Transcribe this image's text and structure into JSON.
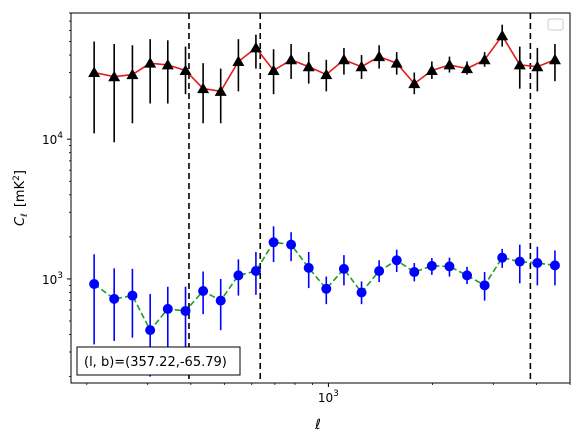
{
  "chart_data": {
    "type": "line",
    "xlabel": "ℓ",
    "ylabel_main": "C",
    "ylabel_sub": "ℓ",
    "ylabel_unit": "[mK",
    "ylabel_unit_sup": "2",
    "ylabel_unit_end": "]",
    "x_scale": "log",
    "y_scale": "log",
    "xlim": [
      180,
      5000
    ],
    "ylim": [
      180,
      80000
    ],
    "x_tick_labels": [
      {
        "value": 1000,
        "base": "10",
        "exp": "3"
      }
    ],
    "y_tick_labels": [
      {
        "value": 1000,
        "base": "10",
        "exp": "3"
      },
      {
        "value": 10000,
        "base": "10",
        "exp": "4"
      }
    ],
    "vlines": [
      395,
      635,
      3840
    ],
    "annotation": "(l, b)=(357.22,-65.79)",
    "legend": "top-right (empty)",
    "series": [
      {
        "color": "#e31a1c",
        "marker_color": "#000000",
        "marker": "triangle",
        "linestyle": "solid",
        "x": [
          210,
          240,
          271,
          305,
          343,
          386,
          434,
          488,
          549,
          617,
          694,
          780,
          877,
          986,
          1109,
          1247,
          1402,
          1576,
          1772,
          1992,
          2240,
          2518,
          2831,
          3183,
          3578,
          4023,
          4523
        ],
        "y": [
          30000,
          28000,
          29000,
          35000,
          34000,
          31000,
          23000,
          22000,
          36000,
          45000,
          31000,
          37000,
          33000,
          29000,
          37000,
          33000,
          39000,
          35000,
          25000,
          31000,
          34000,
          32000,
          37000,
          55000,
          34000,
          33000,
          37000
        ],
        "yerr_lo": [
          11000,
          9500,
          13000,
          18000,
          18000,
          21000,
          13000,
          13000,
          22000,
          32000,
          21000,
          27000,
          25000,
          22000,
          29000,
          27000,
          32000,
          29000,
          21000,
          27000,
          30000,
          29000,
          33000,
          46000,
          23000,
          22000,
          26000
        ],
        "yerr_hi": [
          50000,
          48000,
          47000,
          52000,
          51000,
          46000,
          35000,
          32000,
          52000,
          56000,
          44000,
          48000,
          42000,
          37000,
          45000,
          40000,
          47000,
          42000,
          30000,
          36000,
          39000,
          36000,
          42000,
          66000,
          46000,
          45000,
          48000
        ]
      },
      {
        "color": "#1f9e1f",
        "marker_color": "#0000ff",
        "marker": "circle",
        "linestyle": "dashed",
        "x": [
          210,
          240,
          271,
          305,
          343,
          386,
          434,
          488,
          549,
          617,
          694,
          780,
          877,
          986,
          1109,
          1247,
          1402,
          1576,
          1772,
          1992,
          2240,
          2518,
          2831,
          3183,
          3578,
          4023,
          4523
        ],
        "y": [
          920,
          720,
          760,
          430,
          610,
          590,
          820,
          700,
          1060,
          1140,
          1830,
          1760,
          1200,
          850,
          1180,
          800,
          1140,
          1360,
          1120,
          1240,
          1230,
          1060,
          900,
          1420,
          1330,
          1300,
          1250
        ],
        "yerr_lo": [
          340,
          360,
          380,
          200,
          300,
          320,
          560,
          430,
          760,
          770,
          1320,
          1340,
          860,
          660,
          900,
          660,
          950,
          1120,
          960,
          1070,
          1040,
          920,
          700,
          1200,
          930,
          900,
          900
        ],
        "yerr_hi": [
          1500,
          1190,
          1180,
          780,
          880,
          880,
          1130,
          1000,
          1380,
          1560,
          2380,
          2160,
          1560,
          1040,
          1480,
          960,
          1360,
          1620,
          1300,
          1410,
          1420,
          1220,
          1120,
          1640,
          1760,
          1700,
          1600
        ]
      }
    ]
  }
}
